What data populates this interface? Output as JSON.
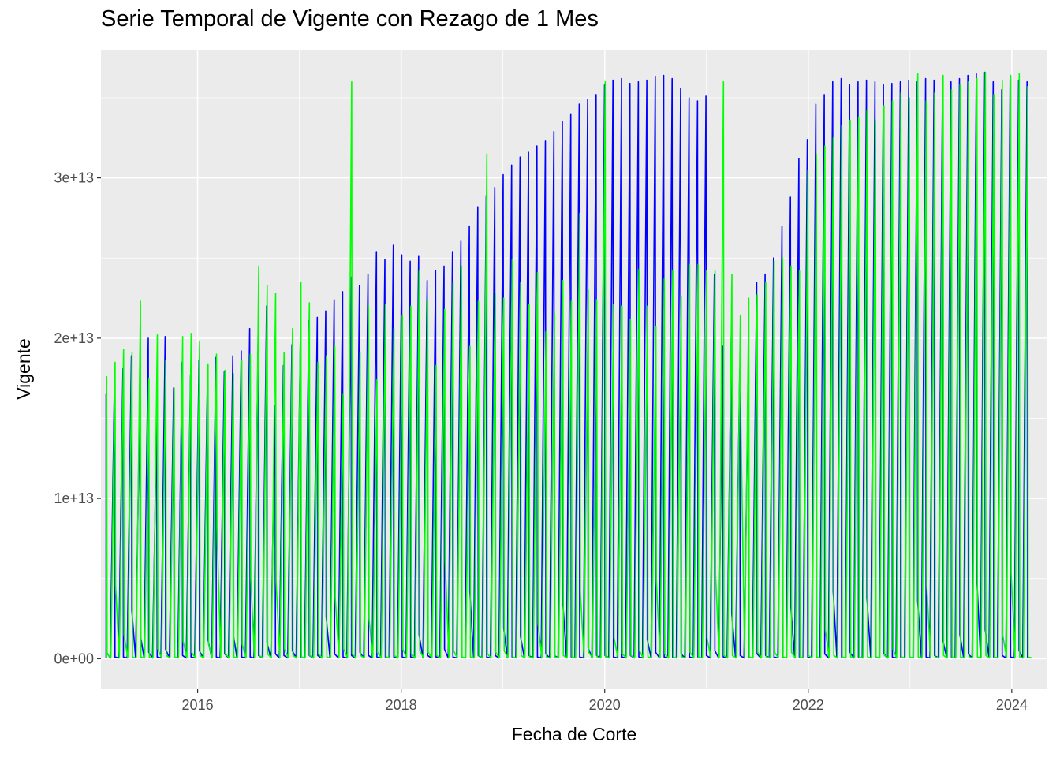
{
  "chart_data": {
    "type": "line",
    "title": "Serie Temporal de Vigente con Rezago de 1 Mes",
    "xlabel": "Fecha de Corte",
    "ylabel": "Vigente",
    "xlim": [
      2015.05,
      2024.35
    ],
    "ylim": [
      -1900000000000.0,
      38000000000000.0
    ],
    "x_ticks": [
      {
        "value": 2016,
        "label": "2016"
      },
      {
        "value": 2018,
        "label": "2018"
      },
      {
        "value": 2020,
        "label": "2020"
      },
      {
        "value": 2022,
        "label": "2022"
      },
      {
        "value": 2024,
        "label": "2024"
      }
    ],
    "y_ticks": [
      {
        "value": 0,
        "label": "0e+00"
      },
      {
        "value": 10000000000000.0,
        "label": "1e+13"
      },
      {
        "value": 20000000000000.0,
        "label": "2e+13"
      },
      {
        "value": 30000000000000.0,
        "label": "3e+13"
      }
    ],
    "grid": true,
    "legend": "none",
    "background": "#ebebeb",
    "series": [
      {
        "color": "#0000ff",
        "monthly_peak": [
          16.5,
          17.6,
          18.1,
          18.9,
          16.2,
          20.0,
          15.0,
          20.1,
          16.9,
          18.5,
          17.7,
          18.6,
          17.4,
          18.8,
          17.9,
          18.9,
          19.2,
          20.6,
          19.8,
          22.0,
          15.8,
          18.3,
          19.6,
          20.3,
          21.1,
          21.3,
          21.7,
          22.4,
          22.9,
          23.8,
          23.3,
          24.0,
          25.4,
          24.9,
          25.8,
          25.2,
          24.8,
          25.1,
          23.6,
          24.2,
          24.5,
          25.4,
          26.1,
          27.0,
          28.2,
          28.9,
          29.4,
          30.2,
          30.8,
          31.3,
          31.6,
          32.0,
          32.3,
          32.9,
          33.5,
          34.0,
          34.6,
          34.9,
          35.2,
          35.8,
          36.1,
          36.2,
          35.9,
          36.0,
          36.1,
          36.3,
          36.4,
          36.2,
          35.6,
          35.0,
          34.8,
          35.1,
          24.0,
          19.5,
          20.0,
          18.0,
          17.0,
          23.5,
          24.0,
          25.0,
          27.0,
          28.8,
          31.2,
          32.4,
          34.6,
          35.2,
          36.0,
          36.2,
          35.8,
          36.0,
          36.1,
          36.0,
          35.8,
          35.9,
          36.0,
          36.1,
          36.0,
          36.2,
          36.1,
          36.3,
          36.0,
          36.2,
          36.4,
          36.5,
          36.6,
          36.0,
          35.5,
          36.3,
          36.1,
          36.0
        ],
        "monthly_floor": [
          0.4,
          0.1,
          0.1,
          3.0,
          1.5,
          0.4,
          0.1,
          0.6,
          0.1,
          0.2,
          0.1,
          0.5,
          1.2,
          0.1,
          0.3,
          1.5,
          0.1,
          0.1,
          0.2,
          1.0,
          0.3,
          0.2,
          0.5,
          0.1,
          0.2,
          0.2,
          2.6,
          0.3,
          0.1,
          0.2,
          0.4,
          0.2,
          0.1,
          0.1,
          0.1,
          0.1,
          0.1,
          1.5,
          0.2,
          0.1,
          0.6,
          0.1,
          0.1,
          4.2,
          0.2,
          0.1,
          0.2,
          1.9,
          0.1,
          1.4,
          0.2,
          0.1,
          0.3,
          0.2,
          3.5,
          0.1,
          0.1,
          0.7,
          0.2,
          0.2,
          0.1,
          0.1,
          0.2,
          0.1,
          1.2,
          0.4,
          0.1,
          0.1,
          0.3,
          0.1,
          0.1,
          0.2,
          0.5,
          0.1,
          2.8,
          0.2,
          0.1,
          0.3,
          0.2,
          0.1,
          0.1,
          3.2,
          0.1,
          0.1,
          0.1,
          0.3,
          4.2,
          0.1,
          0.4,
          0.1,
          3.8,
          0.1,
          0.3,
          0.1,
          0.1,
          0.1,
          3.6,
          0.1,
          0.2,
          1.1,
          0.1,
          1.5,
          0.3,
          5.0,
          1.8,
          0.1,
          0.2,
          0.1,
          0.5,
          0.1
        ]
      },
      {
        "color": "#00ff00",
        "monthly_peak": [
          17.6,
          18.5,
          19.3,
          19.1,
          22.3,
          17.5,
          20.2,
          18.6,
          16.9,
          20.1,
          20.3,
          19.8,
          18.4,
          19.0,
          18.0,
          17.8,
          18.6,
          19.0,
          24.5,
          23.3,
          22.8,
          19.1,
          20.6,
          23.5,
          22.2,
          18.5,
          18.9,
          19.5,
          16.5,
          36.0,
          19.1,
          22.0,
          17.4,
          22.1,
          20.6,
          21.4,
          22.0,
          24.2,
          22.3,
          18.3,
          21.8,
          23.5,
          24.5,
          19.5,
          22.3,
          31.5,
          22.8,
          22.5,
          24.9,
          23.5,
          22.1,
          24.1,
          20.4,
          21.6,
          23.6,
          22.3,
          27.8,
          23.0,
          22.4,
          36.0,
          22.1,
          22.0,
          21.2,
          24.3,
          22.0,
          20.7,
          23.7,
          24.2,
          22.6,
          24.6,
          24.6,
          24.2,
          24.2,
          36.0,
          24.0,
          21.4,
          22.5,
          22.7,
          23.5,
          24.8,
          25.0,
          24.5,
          24.2,
          30.5,
          31.5,
          32.0,
          32.5,
          33.3,
          33.6,
          33.8,
          34.2,
          33.6,
          34.5,
          34.8,
          35.3,
          35.0,
          36.5,
          34.8,
          35.3,
          36.4,
          35.5,
          35.8,
          36.0,
          36.2,
          36.6,
          35.2,
          36.1,
          36.4,
          36.5,
          35.7
        ],
        "monthly_floor": [
          0.3,
          4.6,
          1.5,
          0.1,
          0.1,
          0.1,
          0.6,
          0.2,
          0.1,
          1.1,
          0.4,
          0.2,
          0.9,
          8.1,
          0.3,
          0.1,
          0.9,
          5.0,
          0.2,
          0.3,
          4.8,
          0.6,
          0.2,
          0.1,
          0.2,
          0.3,
          0.1,
          3.8,
          0.6,
          0.3,
          0.2,
          2.5,
          0.4,
          0.1,
          0.2,
          0.6,
          0.3,
          0.5,
          0.4,
          0.2,
          6.2,
          0.5,
          0.1,
          0.1,
          0.2,
          0.3,
          0.4,
          0.5,
          0.1,
          0.2,
          0.1,
          2.2,
          0.1,
          0.1,
          0.2,
          0.1,
          4.2,
          0.4,
          0.1,
          0.1,
          1.3,
          0.3,
          0.2,
          0.5,
          0.1,
          4.9,
          0.3,
          0.1,
          0.1,
          0.4,
          0.1,
          1.3,
          5.3,
          0.2,
          0.2,
          15.0,
          0.1,
          0.4,
          0.1,
          0.4,
          0.1,
          0.4,
          0.1,
          0.2,
          0.1,
          1.8,
          0.2,
          0.1,
          0.1,
          0.1,
          0.1,
          0.1,
          0.2,
          0.6,
          0.1,
          0.1,
          0.1,
          4.6,
          0.1,
          0.2,
          0.1,
          0.1,
          0.1,
          0.1,
          0.2,
          0.1,
          1.5,
          5.3,
          0.1,
          0.1
        ]
      }
    ]
  }
}
